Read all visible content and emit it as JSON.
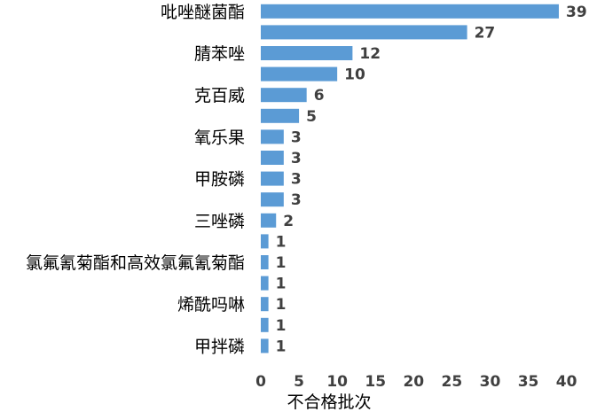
{
  "chart_data": {
    "type": "bar",
    "orientation": "horizontal",
    "categories": [
      "吡唑醚菌酯",
      "",
      "腈苯唑",
      "",
      "克百威",
      "",
      "氧乐果",
      "",
      "甲胺磷",
      "",
      "三唑磷",
      "",
      "氯氟氰菊酯和高效氯氟氰菊酯",
      "",
      "烯酰吗啉",
      "",
      "甲拌磷"
    ],
    "values": [
      39,
      27,
      12,
      10,
      6,
      5,
      3,
      3,
      3,
      3,
      2,
      1,
      1,
      1,
      1,
      1,
      1
    ],
    "value_labels": [
      "39",
      "27",
      "12",
      "10",
      "6",
      "5",
      "3",
      "3",
      "3",
      "3",
      "2",
      "1",
      "1",
      "1",
      "1",
      "1",
      "1"
    ],
    "xlabel": "不合格批次",
    "ylabel": "",
    "xlim": [
      0,
      40
    ],
    "x_ticks": [
      "0",
      "5",
      "10",
      "15",
      "20",
      "25",
      "30",
      "35",
      "40"
    ],
    "grid": false,
    "legend": "none",
    "bar_color": "#5b9bd5"
  }
}
